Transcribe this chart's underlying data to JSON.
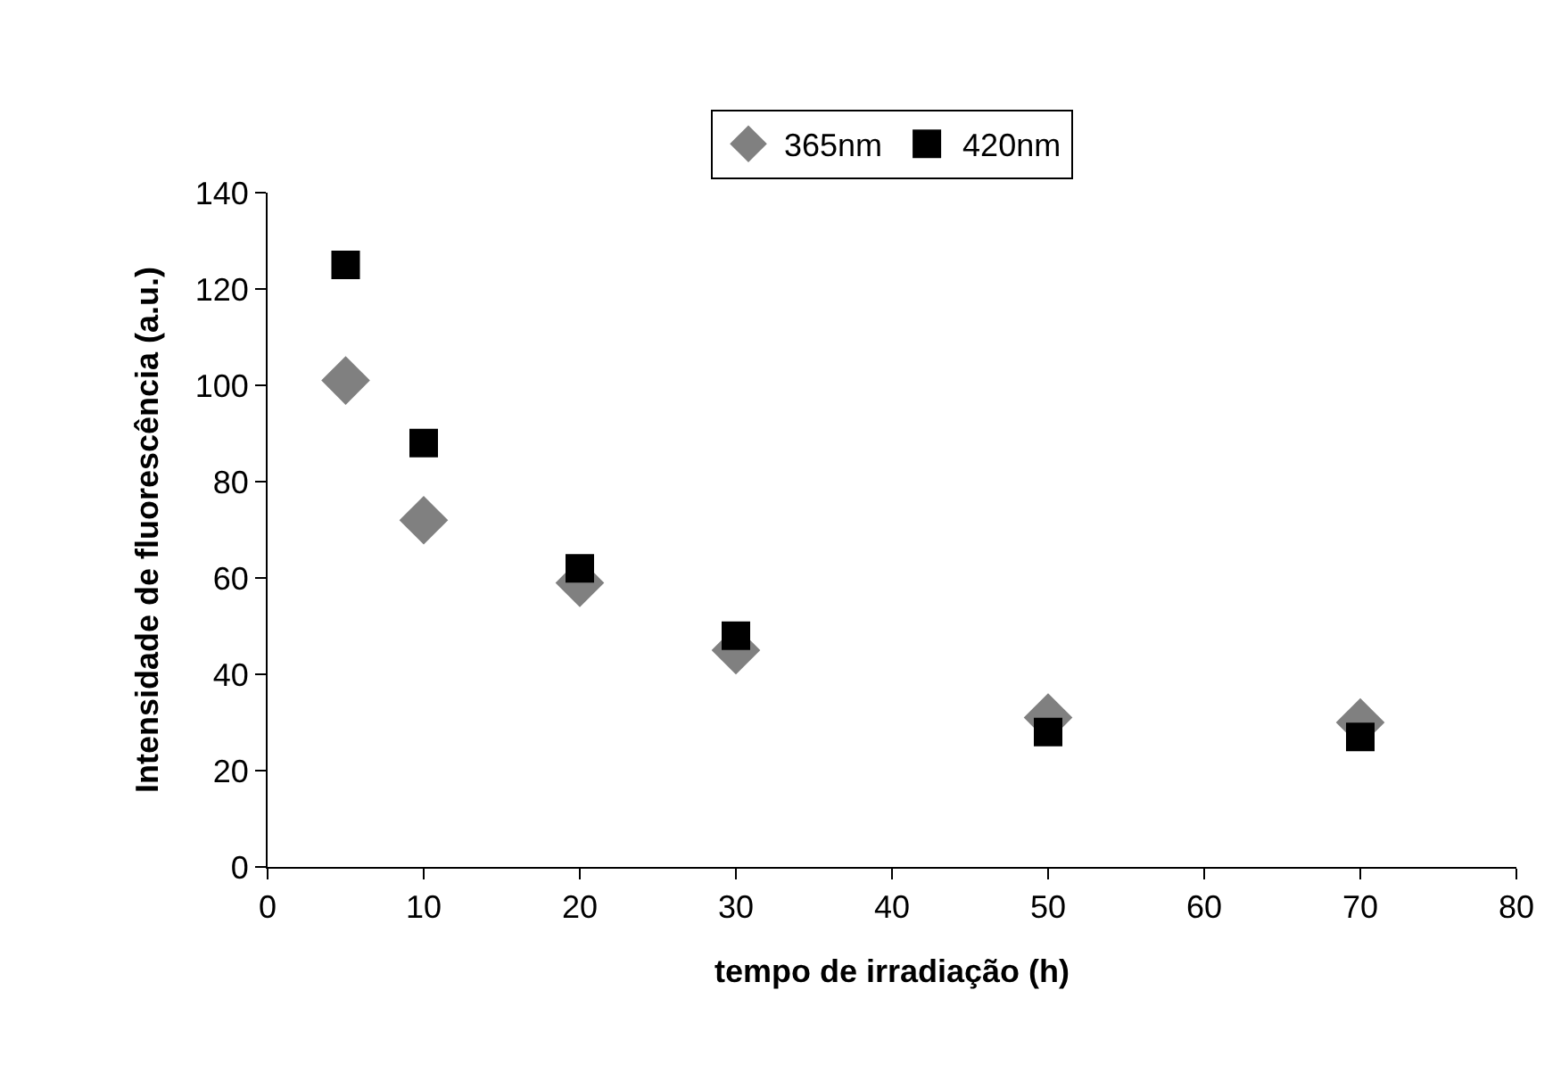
{
  "chart_data": {
    "type": "scatter",
    "xlabel": "tempo de irradiação (h)",
    "ylabel": "Intensidade de fluorescência (a.u.)",
    "x": [
      5,
      10,
      20,
      30,
      50,
      70
    ],
    "series": [
      {
        "name": "365nm",
        "color": "#808080",
        "marker": "diamond",
        "values": [
          101,
          72,
          59,
          45,
          31,
          30
        ]
      },
      {
        "name": "420nm",
        "color": "#000000",
        "marker": "square",
        "values": [
          125,
          88,
          62,
          48,
          28,
          27
        ]
      }
    ],
    "xlim": [
      0,
      80
    ],
    "xticks": [
      0,
      10,
      20,
      30,
      40,
      50,
      60,
      70,
      80
    ],
    "ylim": [
      0,
      140
    ],
    "yticks": [
      0,
      20,
      40,
      60,
      80,
      100,
      120,
      140
    ],
    "grid": false,
    "legend": "top"
  }
}
